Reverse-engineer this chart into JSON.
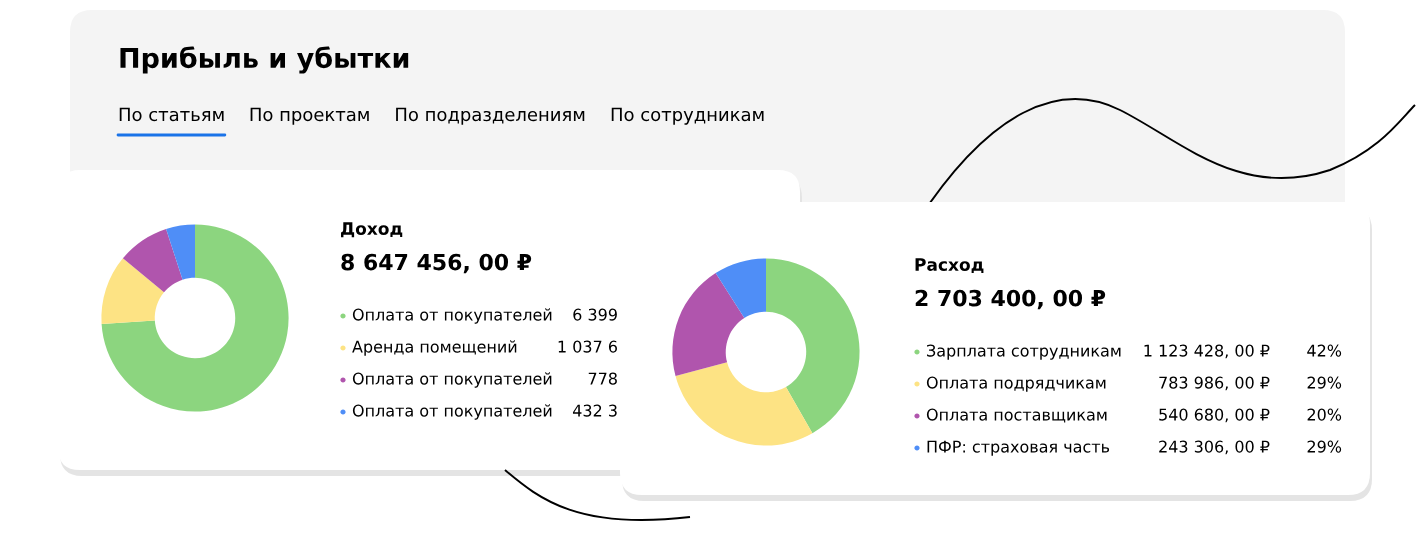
{
  "chart_data": [
    {
      "type": "other",
      "title": "Прибыль и убытки",
      "annotations": [
        "По статьям",
        "По проектам",
        "По подразделениям",
        "По сотрудникам"
      ]
    },
    {
      "type": "donut",
      "title": "Доход",
      "subtitle": "8 647 456, 00 ₽",
      "categories": [
        "Оплата от покупателей",
        "Аренда помещений",
        "Оплата от покупателей",
        "Оплата от покупателей"
      ],
      "values": [
        74,
        12,
        9,
        5
      ],
      "colors": [
        "#8cd57f",
        "#fde384",
        "#b055ad",
        "#4f8ef7"
      ],
      "annotations": [
        "6 399",
        "1 037 6",
        "778",
        "432 3"
      ],
      "legend": "right"
    },
    {
      "type": "donut",
      "title": "Расход",
      "subtitle": "2 703 400, 00 ₽",
      "categories": [
        "Зарплата сотрудникам",
        "Оплата подрядчикам",
        "Оплата поставщикам",
        "ПФР: страховая часть"
      ],
      "values": [
        1123428,
        783986,
        540680,
        243306
      ],
      "colors": [
        "#8cd57f",
        "#fde384",
        "#b055ad",
        "#4f8ef7"
      ],
      "value_labels": [
        "1 123 428, 00 ₽",
        "783 986, 00 ₽",
        "540 680, 00 ₽",
        "243 306, 00 ₽"
      ],
      "annotations": [
        "42%",
        "29%",
        "20%",
        "29%"
      ],
      "legend": "right"
    }
  ]
}
